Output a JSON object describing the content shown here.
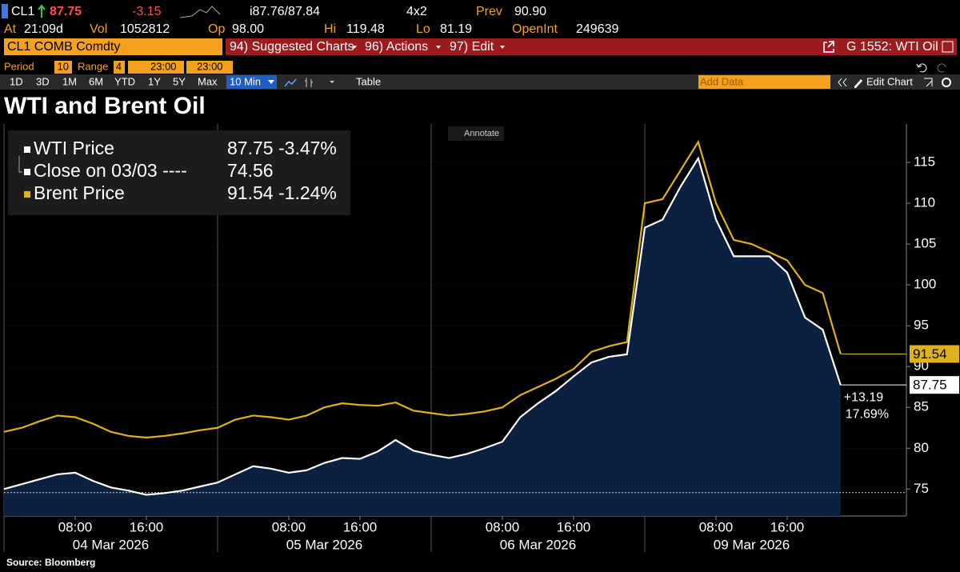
{
  "header": {
    "ticker": "CL1",
    "last": "87.75",
    "change": "-3.15",
    "bid_ask": "i87.76/87.84",
    "size": "4x2",
    "prev_label": "Prev",
    "prev": "90.90",
    "stats": [
      [
        "At",
        "21:09d"
      ],
      [
        "Vol",
        "1052812"
      ],
      [
        "Op",
        "98.00"
      ],
      [
        "Hi",
        "119.48"
      ],
      [
        "Lo",
        "81.19"
      ],
      [
        "OpenInt",
        "249639"
      ]
    ]
  },
  "menu": {
    "security": "CL1 COMB Comdty",
    "items": [
      "94) Suggested Charts",
      "96) Actions",
      "97) Edit"
    ],
    "page": "G 1552: WTI Oil"
  },
  "controls": {
    "period_label": "Period",
    "period": "10",
    "range_label": "Range",
    "range": "4",
    "start": "23:00",
    "end": "23:00",
    "buttons": [
      "1D",
      "3D",
      "1M",
      "6M",
      "YTD",
      "1Y",
      "5Y",
      "Max"
    ],
    "interval": "10 Min",
    "table": "Table",
    "add_data": "Add Data",
    "edit_chart": "Edit Chart"
  },
  "source": "Source: Bloomberg",
  "chart_data": {
    "type": "line",
    "title": "WTI and Brent Oil",
    "annotate": "Annotate",
    "categories": [
      null,
      null,
      null,
      null,
      "08:00",
      null,
      null,
      null,
      "16:00",
      null,
      null,
      null,
      null,
      null,
      null,
      null,
      "08:00",
      null,
      null,
      null,
      "16:00",
      null,
      null,
      null,
      null,
      null,
      null,
      null,
      "08:00",
      null,
      null,
      null,
      "16:00",
      null,
      null,
      null,
      null,
      null,
      null,
      null,
      "08:00",
      null,
      null,
      null,
      "16:00",
      null,
      null,
      null
    ],
    "days": [
      "04 Mar 2026",
      "05 Mar 2026",
      "06 Mar 2026",
      "09 Mar 2026"
    ],
    "series": [
      {
        "name": "WTI Price",
        "color": "#ffffff",
        "fill": "#0c2140",
        "change": "-3.47%",
        "values": [
          75.0,
          75.6,
          76.2,
          76.8,
          77.0,
          76.0,
          75.2,
          74.8,
          74.3,
          74.5,
          74.8,
          75.3,
          75.8,
          76.8,
          77.8,
          77.5,
          77.0,
          77.3,
          78.2,
          78.8,
          78.7,
          79.6,
          81.0,
          79.7,
          79.2,
          78.8,
          79.3,
          80.0,
          80.8,
          83.8,
          85.5,
          87.0,
          88.8,
          90.5,
          91.2,
          91.5,
          107.0,
          108.0,
          112.0,
          115.5,
          108.0,
          103.5,
          103.5,
          103.5,
          101.5,
          96.0,
          94.5,
          87.75
        ]
      },
      {
        "name": "Brent Price",
        "color": "#e0b11e",
        "change": "-1.24%",
        "values": [
          82.0,
          82.5,
          83.3,
          84.0,
          83.8,
          83.0,
          82.0,
          81.5,
          81.3,
          81.5,
          81.8,
          82.2,
          82.5,
          83.5,
          84.0,
          83.8,
          83.5,
          84.0,
          85.0,
          85.5,
          85.3,
          85.2,
          85.6,
          84.6,
          84.3,
          84.0,
          84.2,
          84.5,
          85.0,
          86.5,
          87.5,
          88.5,
          89.7,
          91.8,
          92.5,
          93.0,
          110.0,
          110.5,
          114.0,
          117.5,
          110.0,
          105.5,
          105.0,
          104.0,
          103.0,
          100.0,
          99.0,
          91.54
        ]
      }
    ],
    "close_label": "Close on 03/03 ----",
    "close_value": 74.56,
    "change_abs": "+13.19",
    "change_pct": "17.69%",
    "ylim": [
      71.7,
      119.7
    ],
    "yticks": [
      75,
      80,
      85,
      90,
      95,
      100,
      105,
      110,
      115
    ],
    "grid": true
  }
}
